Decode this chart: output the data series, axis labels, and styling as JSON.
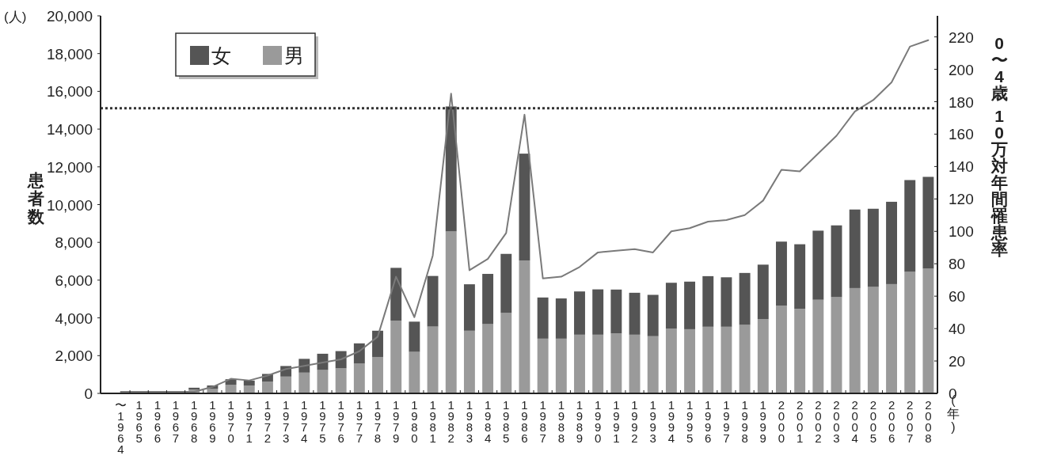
{
  "chart_data": {
    "type": "bar",
    "stacked": true,
    "categories": [
      "〜1964",
      "1965",
      "1966",
      "1967",
      "1968",
      "1969",
      "1970",
      "1971",
      "1972",
      "1973",
      "1974",
      "1975",
      "1976",
      "1977",
      "1978",
      "1979",
      "1980",
      "1981",
      "1982",
      "1983",
      "1984",
      "1985",
      "1986",
      "1987",
      "1988",
      "1989",
      "1990",
      "1991",
      "1992",
      "1993",
      "1994",
      "1995",
      "1996",
      "1997",
      "1998",
      "1999",
      "2000",
      "2001",
      "2002",
      "2003",
      "2004",
      "2005",
      "2006",
      "2007",
      "2008"
    ],
    "series": [
      {
        "name": "男",
        "color": "#9a9a9a",
        "values": [
          20,
          0,
          0,
          0,
          200,
          250,
          460,
          420,
          620,
          890,
          1100,
          1240,
          1330,
          1580,
          1930,
          3850,
          2200,
          3540,
          8580,
          3320,
          3670,
          4260,
          7040,
          2900,
          2900,
          3110,
          3110,
          3180,
          3110,
          3030,
          3430,
          3400,
          3530,
          3530,
          3630,
          3940,
          4650,
          4480,
          4960,
          5100,
          5580,
          5640,
          5790,
          6440,
          6610
        ]
      },
      {
        "name": "女",
        "color": "#555555",
        "values": [
          10,
          0,
          0,
          0,
          100,
          170,
          290,
          260,
          410,
          560,
          730,
          860,
          910,
          1070,
          1390,
          2800,
          1600,
          2680,
          6620,
          2460,
          2660,
          3130,
          5660,
          2180,
          2130,
          2290,
          2400,
          2320,
          2220,
          2190,
          2430,
          2520,
          2680,
          2620,
          2750,
          2880,
          3390,
          3420,
          3660,
          3800,
          4160,
          4140,
          4360,
          4860,
          4860
        ]
      },
      {
        "name": null,
        "type": "line",
        "axis": "y2",
        "color": "#7a7a7a",
        "values": [
          1,
          1,
          1,
          1,
          1,
          4,
          9,
          8,
          11,
          15,
          17,
          19,
          21,
          26,
          35,
          72,
          47,
          85,
          185,
          76,
          83,
          99,
          172,
          71,
          72,
          78,
          87,
          88,
          89,
          87,
          100,
          102,
          106,
          107,
          110,
          119,
          138,
          137,
          148,
          159,
          174,
          181,
          192,
          214,
          218
        ]
      }
    ],
    "ylim": [
      0,
      20000
    ],
    "yticks": [
      {
        "value": 0,
        "label": "0"
      },
      {
        "value": 2000,
        "label": "2,000"
      },
      {
        "value": 4000,
        "label": "4,000"
      },
      {
        "value": 6000,
        "label": "6,000"
      },
      {
        "value": 8000,
        "label": "8,000"
      },
      {
        "value": 10000,
        "label": "10,000"
      },
      {
        "value": 12000,
        "label": "12,000"
      },
      {
        "value": 14000,
        "label": "14,000"
      },
      {
        "value": 16000,
        "label": "16,000"
      },
      {
        "value": 18000,
        "label": "18,000"
      },
      {
        "value": 20000,
        "label": "20,000"
      }
    ],
    "y2lim": [
      0,
      233
    ],
    "y2ticks": [
      0,
      20,
      40,
      60,
      80,
      100,
      120,
      140,
      160,
      180,
      200,
      220
    ],
    "ylabel": "患者数",
    "y2label": "0〜4歳 10万対年間罹患率",
    "xlabel": "(年)",
    "annotations": [
      "(人)"
    ],
    "ref_lines": [
      {
        "axis": "y",
        "value": 15100,
        "color": "#333333",
        "line_style": "dotted"
      }
    ],
    "legend": "top left",
    "marker": "none"
  }
}
